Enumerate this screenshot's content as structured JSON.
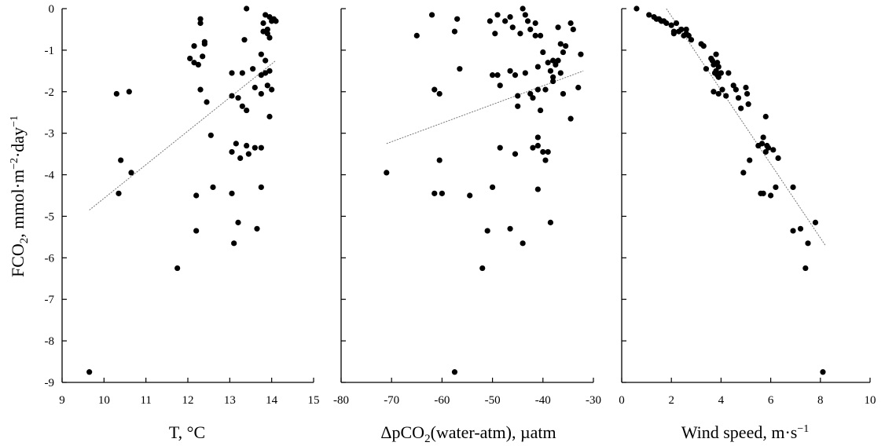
{
  "ylabel": {
    "main": "FCO",
    "sub": "2",
    "unit": ", mmol·m",
    "exp1": "−2",
    "mid": "·day",
    "exp2": "−1"
  },
  "panel_titles": [
    {
      "main": "T, °C"
    },
    {
      "main": "ΔpCO",
      "sub": "2",
      "rest": "(water-atm), µatm"
    },
    {
      "main": "Wind speed, m·s",
      "sup": "−1"
    }
  ],
  "chart_data": [
    {
      "type": "scatter",
      "xlabel": "T, °C",
      "ylabel": "FCO2, mmol·m−2·day−1",
      "xlim": [
        9,
        15
      ],
      "ylim": [
        -9,
        0
      ],
      "xticks": [
        9,
        10,
        11,
        12,
        13,
        14,
        15
      ],
      "yticks": [
        0,
        -1,
        -2,
        -3,
        -4,
        -5,
        -6,
        -7,
        -8,
        -9
      ],
      "trendline": {
        "x": [
          9.65,
          14.1
        ],
        "y": [
          -4.85,
          -1.25
        ]
      },
      "points": [
        [
          9.65,
          -8.75
        ],
        [
          10.3,
          -2.05
        ],
        [
          10.35,
          -4.45
        ],
        [
          10.4,
          -3.65
        ],
        [
          10.6,
          -2.0
        ],
        [
          10.65,
          -3.95
        ],
        [
          11.75,
          -6.25
        ],
        [
          12.05,
          -1.2
        ],
        [
          12.15,
          -0.9
        ],
        [
          12.15,
          -1.3
        ],
        [
          12.2,
          -4.5
        ],
        [
          12.2,
          -5.35
        ],
        [
          12.25,
          -1.35
        ],
        [
          12.3,
          -0.25
        ],
        [
          12.3,
          -0.35
        ],
        [
          12.3,
          -1.95
        ],
        [
          12.35,
          -1.15
        ],
        [
          12.4,
          -0.8
        ],
        [
          12.4,
          -0.85
        ],
        [
          12.45,
          -2.25
        ],
        [
          12.55,
          -3.05
        ],
        [
          12.6,
          -4.3
        ],
        [
          13.05,
          -1.55
        ],
        [
          13.05,
          -2.1
        ],
        [
          13.05,
          -3.45
        ],
        [
          13.05,
          -4.45
        ],
        [
          13.1,
          -5.65
        ],
        [
          13.15,
          -3.25
        ],
        [
          13.2,
          -2.15
        ],
        [
          13.2,
          -5.15
        ],
        [
          13.25,
          -3.6
        ],
        [
          13.3,
          -1.55
        ],
        [
          13.3,
          -2.35
        ],
        [
          13.35,
          -0.75
        ],
        [
          13.4,
          -3.3
        ],
        [
          13.4,
          -2.45
        ],
        [
          13.4,
          -0.0
        ],
        [
          13.45,
          -3.5
        ],
        [
          13.55,
          -1.45
        ],
        [
          13.6,
          -1.9
        ],
        [
          13.6,
          -3.35
        ],
        [
          13.65,
          -5.3
        ],
        [
          13.75,
          -1.1
        ],
        [
          13.75,
          -1.6
        ],
        [
          13.75,
          -2.05
        ],
        [
          13.75,
          -3.35
        ],
        [
          13.75,
          -4.3
        ],
        [
          13.8,
          -0.35
        ],
        [
          13.8,
          -0.55
        ],
        [
          13.85,
          -1.25
        ],
        [
          13.85,
          -1.55
        ],
        [
          13.85,
          -0.15
        ],
        [
          13.9,
          -0.5
        ],
        [
          13.9,
          -0.6
        ],
        [
          13.9,
          -1.85
        ],
        [
          13.95,
          -0.2
        ],
        [
          13.95,
          -0.7
        ],
        [
          13.95,
          -2.6
        ],
        [
          13.95,
          -1.5
        ],
        [
          14.0,
          -0.3
        ],
        [
          14.0,
          -1.95
        ],
        [
          14.05,
          -0.25
        ],
        [
          14.1,
          -0.3
        ]
      ]
    },
    {
      "type": "scatter",
      "xlabel": "ΔpCO2(water-atm), µatm",
      "ylabel": "FCO2, mmol·m−2·day−1",
      "xlim": [
        -80,
        -30
      ],
      "ylim": [
        -9,
        0
      ],
      "xticks": [
        -80,
        -70,
        -60,
        -50,
        -40,
        -30
      ],
      "yticks": [
        0,
        -1,
        -2,
        -3,
        -4,
        -5,
        -6,
        -7,
        -8,
        -9
      ],
      "trendline": {
        "x": [
          -71,
          -32
        ],
        "y": [
          -3.25,
          -1.5
        ]
      },
      "points": [
        [
          -71,
          -3.95
        ],
        [
          -65,
          -0.65
        ],
        [
          -62,
          -0.15
        ],
        [
          -61.5,
          -1.95
        ],
        [
          -61.5,
          -4.45
        ],
        [
          -60.5,
          -2.05
        ],
        [
          -60.5,
          -3.65
        ],
        [
          -60,
          -4.45
        ],
        [
          -57.5,
          -0.55
        ],
        [
          -57.5,
          -8.75
        ],
        [
          -57,
          -0.25
        ],
        [
          -56.5,
          -1.45
        ],
        [
          -54.5,
          -4.5
        ],
        [
          -52,
          -6.25
        ],
        [
          -51,
          -5.35
        ],
        [
          -50.5,
          -0.3
        ],
        [
          -50,
          -1.6
        ],
        [
          -50,
          -4.3
        ],
        [
          -49.5,
          -0.6
        ],
        [
          -49,
          -1.6
        ],
        [
          -49,
          -0.15
        ],
        [
          -48.5,
          -1.85
        ],
        [
          -48.5,
          -3.35
        ],
        [
          -47.5,
          -0.3
        ],
        [
          -46.5,
          -0.2
        ],
        [
          -46.5,
          -1.5
        ],
        [
          -46.5,
          -5.3
        ],
        [
          -46,
          -0.45
        ],
        [
          -45.5,
          -1.6
        ],
        [
          -45.5,
          -3.5
        ],
        [
          -45,
          -2.1
        ],
        [
          -45,
          -2.35
        ],
        [
          -44.5,
          -0.6
        ],
        [
          -44,
          -0.0
        ],
        [
          -44,
          -5.65
        ],
        [
          -43.5,
          -0.15
        ],
        [
          -43.5,
          -1.55
        ],
        [
          -43,
          -0.3
        ],
        [
          -42.5,
          -0.5
        ],
        [
          -42.5,
          -2.05
        ],
        [
          -42,
          -2.15
        ],
        [
          -42,
          -3.35
        ],
        [
          -41.5,
          -0.35
        ],
        [
          -41.5,
          -0.65
        ],
        [
          -41,
          -1.4
        ],
        [
          -41,
          -1.95
        ],
        [
          -41,
          -3.1
        ],
        [
          -41,
          -3.3
        ],
        [
          -41,
          -4.35
        ],
        [
          -40.5,
          -0.65
        ],
        [
          -40.5,
          -2.45
        ],
        [
          -40,
          -1.05
        ],
        [
          -40,
          -3.45
        ],
        [
          -39.5,
          -3.65
        ],
        [
          -39.5,
          -1.95
        ],
        [
          -39,
          -1.3
        ],
        [
          -39,
          -3.45
        ],
        [
          -38.5,
          -1.5
        ],
        [
          -38.5,
          -5.15
        ],
        [
          -38,
          -1.25
        ],
        [
          -38,
          -1.65
        ],
        [
          -38,
          -1.75
        ],
        [
          -37.5,
          -1.35
        ],
        [
          -37,
          -0.45
        ],
        [
          -37,
          -1.25
        ],
        [
          -36.5,
          -0.85
        ],
        [
          -36.5,
          -1.55
        ],
        [
          -36,
          -1.05
        ],
        [
          -36,
          -2.05
        ],
        [
          -35.5,
          -0.9
        ],
        [
          -34.5,
          -0.35
        ],
        [
          -34.5,
          -2.65
        ],
        [
          -34,
          -0.5
        ],
        [
          -33,
          -1.9
        ],
        [
          -32.5,
          -1.1
        ]
      ]
    },
    {
      "type": "scatter",
      "xlabel": "Wind speed, m·s−1",
      "ylabel": "FCO2, mmol·m−2·day−1",
      "xlim": [
        0,
        10
      ],
      "ylim": [
        -9,
        0
      ],
      "xticks": [
        0,
        2,
        4,
        6,
        8,
        10
      ],
      "yticks": [
        0,
        -1,
        -2,
        -3,
        -4,
        -5,
        -6,
        -7,
        -8,
        -9
      ],
      "trendline": {
        "x": [
          1.8,
          8.2
        ],
        "y": [
          0,
          -5.7
        ]
      },
      "points": [
        [
          0.6,
          -0.0
        ],
        [
          1.1,
          -0.15
        ],
        [
          1.3,
          -0.2
        ],
        [
          1.4,
          -0.25
        ],
        [
          1.5,
          -0.25
        ],
        [
          1.6,
          -0.3
        ],
        [
          1.7,
          -0.3
        ],
        [
          1.8,
          -0.35
        ],
        [
          2.0,
          -0.4
        ],
        [
          2.1,
          -0.55
        ],
        [
          2.1,
          -0.6
        ],
        [
          2.2,
          -0.35
        ],
        [
          2.3,
          -0.55
        ],
        [
          2.4,
          -0.5
        ],
        [
          2.5,
          -0.65
        ],
        [
          2.6,
          -0.5
        ],
        [
          2.6,
          -0.6
        ],
        [
          2.7,
          -0.65
        ],
        [
          2.8,
          -0.75
        ],
        [
          3.2,
          -0.85
        ],
        [
          3.3,
          -0.9
        ],
        [
          3.4,
          -1.45
        ],
        [
          3.6,
          -1.2
        ],
        [
          3.65,
          -1.25
        ],
        [
          3.7,
          -1.35
        ],
        [
          3.7,
          -2.0
        ],
        [
          3.75,
          -1.55
        ],
        [
          3.8,
          -1.1
        ],
        [
          3.8,
          -1.5
        ],
        [
          3.85,
          -1.3
        ],
        [
          3.85,
          -1.6
        ],
        [
          3.9,
          -1.4
        ],
        [
          3.9,
          -1.65
        ],
        [
          3.9,
          -2.05
        ],
        [
          4.0,
          -1.55
        ],
        [
          4.05,
          -1.95
        ],
        [
          4.2,
          -2.1
        ],
        [
          4.3,
          -1.55
        ],
        [
          4.5,
          -1.85
        ],
        [
          4.6,
          -1.95
        ],
        [
          4.7,
          -2.15
        ],
        [
          4.8,
          -2.4
        ],
        [
          4.9,
          -3.95
        ],
        [
          5.0,
          -1.9
        ],
        [
          5.05,
          -2.05
        ],
        [
          5.1,
          -2.3
        ],
        [
          5.15,
          -3.65
        ],
        [
          5.5,
          -3.3
        ],
        [
          5.6,
          -4.45
        ],
        [
          5.65,
          -3.25
        ],
        [
          5.7,
          -3.1
        ],
        [
          5.7,
          -4.45
        ],
        [
          5.8,
          -2.6
        ],
        [
          5.8,
          -3.45
        ],
        [
          5.85,
          -3.3
        ],
        [
          5.9,
          -3.35
        ],
        [
          6.0,
          -4.5
        ],
        [
          6.1,
          -3.4
        ],
        [
          6.2,
          -4.3
        ],
        [
          6.3,
          -3.6
        ],
        [
          6.9,
          -4.3
        ],
        [
          6.9,
          -5.35
        ],
        [
          7.2,
          -5.3
        ],
        [
          7.4,
          -6.25
        ],
        [
          7.5,
          -5.65
        ],
        [
          7.8,
          -5.15
        ],
        [
          8.1,
          -8.75
        ]
      ]
    }
  ]
}
